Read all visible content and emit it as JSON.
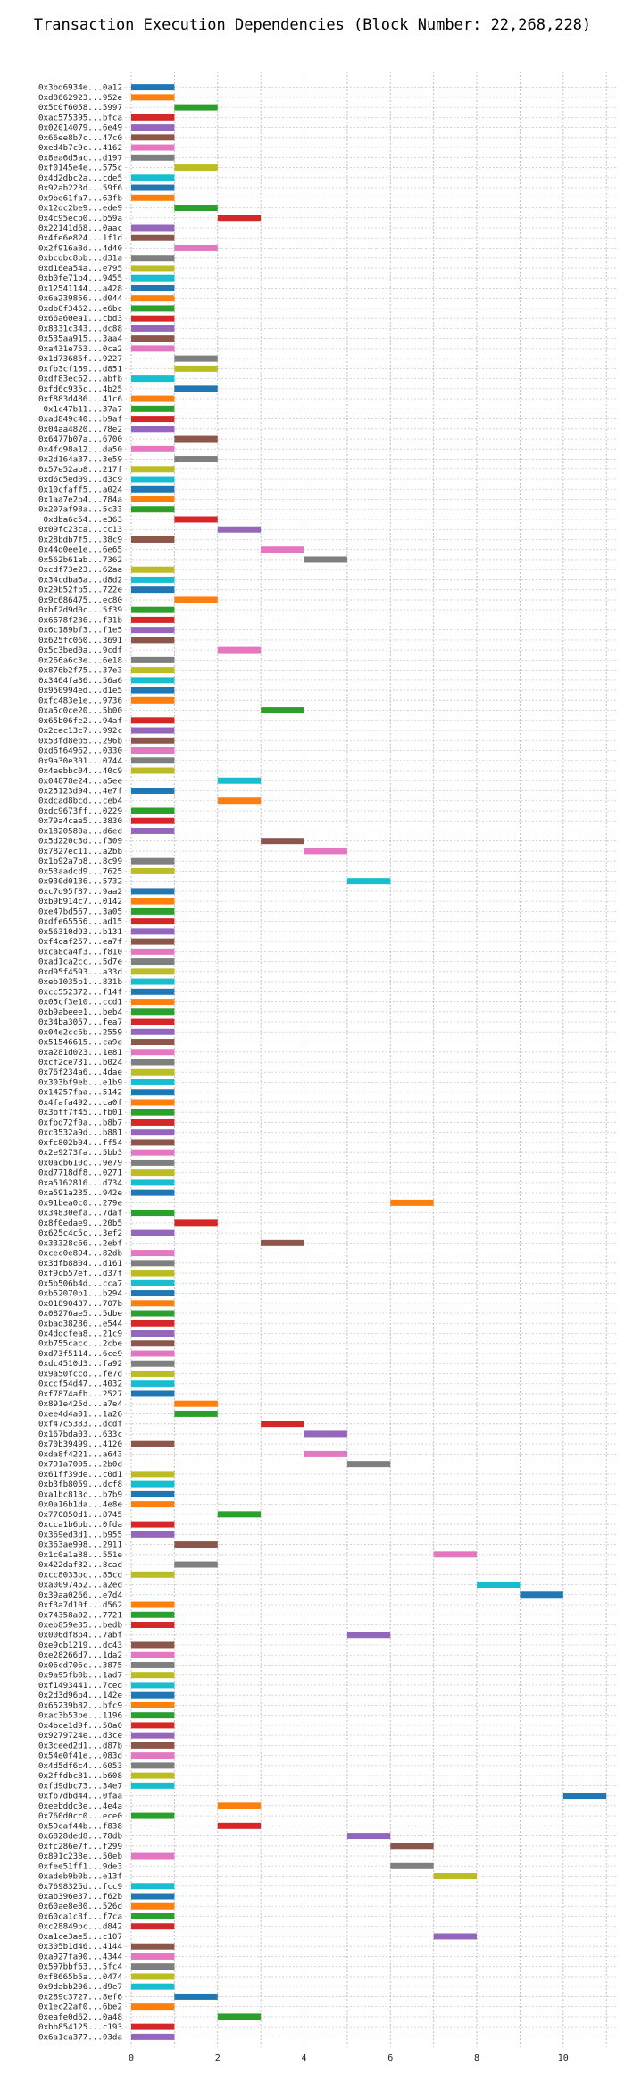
{
  "chart_data": {
    "type": "bar",
    "orientation": "horizontal-gantt",
    "title": "Transaction Execution Dependencies (Block Number: 22,268,228)",
    "xlabel": "",
    "ylabel": "",
    "xlim": [
      0,
      11.6
    ],
    "xticks": [
      0,
      2,
      4,
      6,
      8,
      10
    ],
    "grid": true,
    "colors": [
      "#1f77b4",
      "#ff7f0e",
      "#2ca02c",
      "#d62728",
      "#9467bd",
      "#8c564b",
      "#e377c2",
      "#7f7f7f",
      "#bcbd22",
      "#17becf"
    ],
    "transactions": [
      {
        "label": "0x3bd6934e...0a12",
        "start": 0
      },
      {
        "label": "0xd8662923...952e",
        "start": 0
      },
      {
        "label": "0x5c0f6058...5997",
        "start": 1
      },
      {
        "label": "0xac575395...bfca",
        "start": 0
      },
      {
        "label": "0x02014079...6e49",
        "start": 0
      },
      {
        "label": "0x66ee8b7c...47c0",
        "start": 0
      },
      {
        "label": "0xed4b7c9c...4162",
        "start": 0
      },
      {
        "label": "0x8ea6d5ac...d197",
        "start": 0
      },
      {
        "label": "0xf0145e4e...575c",
        "start": 1
      },
      {
        "label": "0x4d2dbc2a...cde5",
        "start": 0
      },
      {
        "label": "0x92ab223d...59f6",
        "start": 0
      },
      {
        "label": "0x9be61fa7...63fb",
        "start": 0
      },
      {
        "label": "0x12dc2be9...ede9",
        "start": 1
      },
      {
        "label": "0x4c95ecb0...b59a",
        "start": 2
      },
      {
        "label": "0x22141d68...0aac",
        "start": 0
      },
      {
        "label": "0x4fe6e824...1f1d",
        "start": 0
      },
      {
        "label": "0x2f916a8d...4d40",
        "start": 1
      },
      {
        "label": "0xbcdbc8bb...d31a",
        "start": 0
      },
      {
        "label": "0xd16ea54a...e795",
        "start": 0
      },
      {
        "label": "0xb0fe71b4...9455",
        "start": 0
      },
      {
        "label": "0x12541144...a428",
        "start": 0
      },
      {
        "label": "0x6a239856...d044",
        "start": 0
      },
      {
        "label": "0xdb0f3462...e6bc",
        "start": 0
      },
      {
        "label": "0x66a60ea1...cbd3",
        "start": 0
      },
      {
        "label": "0x8331c343...dc88",
        "start": 0
      },
      {
        "label": "0x535aa915...3aa4",
        "start": 0
      },
      {
        "label": "0xa431e753...0ca2",
        "start": 0
      },
      {
        "label": "0x1d73685f...9227",
        "start": 1
      },
      {
        "label": "0xfb3cf169...d851",
        "start": 1
      },
      {
        "label": "0xdf83ec62...abfb",
        "start": 0
      },
      {
        "label": "0xfd6c935c...4b25",
        "start": 1
      },
      {
        "label": "0xf883d486...41c6",
        "start": 0
      },
      {
        "label": "0x1c47b11...37a7",
        "start": 0
      },
      {
        "label": "0xad849c40...b9af",
        "start": 0
      },
      {
        "label": "0x04aa4820...78e2",
        "start": 0
      },
      {
        "label": "0x6477b07a...6700",
        "start": 1
      },
      {
        "label": "0x4fc98a12...da50",
        "start": 0
      },
      {
        "label": "0x2d164a37...3e59",
        "start": 1
      },
      {
        "label": "0x57e52ab8...217f",
        "start": 0
      },
      {
        "label": "0xd6c5ed09...d3c9",
        "start": 0
      },
      {
        "label": "0x10cfaff5...a024",
        "start": 0
      },
      {
        "label": "0x1aa7e2b4...784a",
        "start": 0
      },
      {
        "label": "0x207af98a...5c33",
        "start": 0
      },
      {
        "label": "0xdba6c54...e363",
        "start": 1
      },
      {
        "label": "0x09fc23ca...cc13",
        "start": 2
      },
      {
        "label": "0x28bdb7f5...38c9",
        "start": 0
      },
      {
        "label": "0x44d0ee1e...6e65",
        "start": 3
      },
      {
        "label": "0x562b61ab...7362",
        "start": 4
      },
      {
        "label": "0xcdf73e23...62aa",
        "start": 0
      },
      {
        "label": "0x34cdba6a...d8d2",
        "start": 0
      },
      {
        "label": "0x29b52fb5...722e",
        "start": 0
      },
      {
        "label": "0x9c686475...ec80",
        "start": 1
      },
      {
        "label": "0xbf2d9d0c...5f39",
        "start": 0
      },
      {
        "label": "0x6678f236...f31b",
        "start": 0
      },
      {
        "label": "0x6c189bf3...f1e5",
        "start": 0
      },
      {
        "label": "0x625fc060...3691",
        "start": 0
      },
      {
        "label": "0x5c3bed0a...9cdf",
        "start": 2
      },
      {
        "label": "0x266a6c3e...6e18",
        "start": 0
      },
      {
        "label": "0x876b2f75...37e3",
        "start": 0
      },
      {
        "label": "0x3464fa36...56a6",
        "start": 0
      },
      {
        "label": "0x950994ed...d1e5",
        "start": 0
      },
      {
        "label": "0xfc483e1e...9736",
        "start": 0
      },
      {
        "label": "0xa5c0ce20...5b00",
        "start": 3
      },
      {
        "label": "0x65b06fe2...94af",
        "start": 0
      },
      {
        "label": "0x2cec13c7...992c",
        "start": 0
      },
      {
        "label": "0x53fd8eb5...296b",
        "start": 0
      },
      {
        "label": "0xd6f64962...0330",
        "start": 0
      },
      {
        "label": "0x9a30e301...0744",
        "start": 0
      },
      {
        "label": "0x4eebbc04...40c9",
        "start": 0
      },
      {
        "label": "0x04878e24...a5ee",
        "start": 2
      },
      {
        "label": "0x25123d94...4e7f",
        "start": 0
      },
      {
        "label": "0xdcad8bcd...ceb4",
        "start": 2
      },
      {
        "label": "0xdc9673ff...0229",
        "start": 0
      },
      {
        "label": "0x79a4cae5...3830",
        "start": 0
      },
      {
        "label": "0x1820580a...d6ed",
        "start": 0
      },
      {
        "label": "0x5d220c3d...f309",
        "start": 3
      },
      {
        "label": "0x7827ec11...a2bb",
        "start": 4
      },
      {
        "label": "0x1b92a7b8...8c99",
        "start": 0
      },
      {
        "label": "0x53aadcd9...7625",
        "start": 0
      },
      {
        "label": "0x930d0136...5732",
        "start": 5
      },
      {
        "label": "0xc7d95f87...9aa2",
        "start": 0
      },
      {
        "label": "0xb9b914c7...0142",
        "start": 0
      },
      {
        "label": "0xe47bd567...3a05",
        "start": 0
      },
      {
        "label": "0xdfe65556...ad15",
        "start": 0
      },
      {
        "label": "0x56310d93...b131",
        "start": 0
      },
      {
        "label": "0xf4caf257...ea7f",
        "start": 0
      },
      {
        "label": "0xca8ca4f3...f810",
        "start": 0
      },
      {
        "label": "0xad1ca2cc...5d7e",
        "start": 0
      },
      {
        "label": "0xd95f4593...a33d",
        "start": 0
      },
      {
        "label": "0xeb1035b1...831b",
        "start": 0
      },
      {
        "label": "0xcc552372...f14f",
        "start": 0
      },
      {
        "label": "0x05cf3e10...ccd1",
        "start": 0
      },
      {
        "label": "0xb9abeee1...beb4",
        "start": 0
      },
      {
        "label": "0x34ba3057...fea7",
        "start": 0
      },
      {
        "label": "0x04e2cc6b...2559",
        "start": 0
      },
      {
        "label": "0x51546615...ca9e",
        "start": 0
      },
      {
        "label": "0xa281d023...1e81",
        "start": 0
      },
      {
        "label": "0xcf2ce731...b024",
        "start": 0
      },
      {
        "label": "0x76f234a6...4dae",
        "start": 0
      },
      {
        "label": "0x303bf9eb...e1b9",
        "start": 0
      },
      {
        "label": "0x14257faa...5142",
        "start": 0
      },
      {
        "label": "0x4fafa492...ca0f",
        "start": 0
      },
      {
        "label": "0x3bff7f45...fb01",
        "start": 0
      },
      {
        "label": "0xfbd72f0a...b8b7",
        "start": 0
      },
      {
        "label": "0xc3532a9d...b881",
        "start": 0
      },
      {
        "label": "0xfc802b04...ff54",
        "start": 0
      },
      {
        "label": "0x2e9273fa...5bb3",
        "start": 0
      },
      {
        "label": "0x0acb610c...9e79",
        "start": 0
      },
      {
        "label": "0xd7718df8...0271",
        "start": 0
      },
      {
        "label": "0xa5162816...d734",
        "start": 0
      },
      {
        "label": "0xa591a235...942e",
        "start": 0
      },
      {
        "label": "0x91bea0c0...279e",
        "start": 6
      },
      {
        "label": "0x34830efa...7daf",
        "start": 0
      },
      {
        "label": "0x8f0edae9...20b5",
        "start": 1
      },
      {
        "label": "0x625c4c5c...3ef2",
        "start": 0
      },
      {
        "label": "0x33328c66...2ebf",
        "start": 3
      },
      {
        "label": "0xcec0e894...82db",
        "start": 0
      },
      {
        "label": "0x3dfb8804...d161",
        "start": 0
      },
      {
        "label": "0xf9cb57ef...d37f",
        "start": 0
      },
      {
        "label": "0x5b506b4d...cca7",
        "start": 0
      },
      {
        "label": "0xb52070b1...b294",
        "start": 0
      },
      {
        "label": "0x01890437...707b",
        "start": 0
      },
      {
        "label": "0x08276ae5...5dbe",
        "start": 0
      },
      {
        "label": "0xbad38286...e544",
        "start": 0
      },
      {
        "label": "0x4ddcfea8...21c9",
        "start": 0
      },
      {
        "label": "0xb755cacc...2cbe",
        "start": 0
      },
      {
        "label": "0xd73f5114...6ce9",
        "start": 0
      },
      {
        "label": "0xdc4510d3...fa92",
        "start": 0
      },
      {
        "label": "0x9a50fccd...fe7d",
        "start": 0
      },
      {
        "label": "0xccf54d47...4032",
        "start": 0
      },
      {
        "label": "0xf7874afb...2527",
        "start": 0
      },
      {
        "label": "0x891e425d...a7e4",
        "start": 1
      },
      {
        "label": "0xee4d4a01...1a26",
        "start": 1
      },
      {
        "label": "0xf47c5383...dcdf",
        "start": 3
      },
      {
        "label": "0x167bda03...633c",
        "start": 4
      },
      {
        "label": "0x70b39499...4120",
        "start": 0
      },
      {
        "label": "0xda8f4221...a643",
        "start": 4
      },
      {
        "label": "0x791a7005...2b0d",
        "start": 5
      },
      {
        "label": "0x61ff39de...c0d1",
        "start": 0
      },
      {
        "label": "0xb3fb8059...dcf8",
        "start": 0
      },
      {
        "label": "0xa1bc813c...b7b9",
        "start": 0
      },
      {
        "label": "0x0a16b1da...4e8e",
        "start": 0
      },
      {
        "label": "0x770850d1...8745",
        "start": 2
      },
      {
        "label": "0xcca1b6bb...0fda",
        "start": 0
      },
      {
        "label": "0x369ed3d1...b955",
        "start": 0
      },
      {
        "label": "0x363ae998...2911",
        "start": 1
      },
      {
        "label": "0x1c0a1a88...551e",
        "start": 7
      },
      {
        "label": "0x422daf32...8cad",
        "start": 1
      },
      {
        "label": "0xcc8033bc...85cd",
        "start": 0
      },
      {
        "label": "0xa0097452...a2ed",
        "start": 8
      },
      {
        "label": "0x39aa0266...e7d4",
        "start": 9
      },
      {
        "label": "0xf3a7d10f...d562",
        "start": 0
      },
      {
        "label": "0x74358a02...7721",
        "start": 0
      },
      {
        "label": "0xeb859e35...bedb",
        "start": 0
      },
      {
        "label": "0x006df8b4...7abf",
        "start": 5
      },
      {
        "label": "0xe9cb1219...dc43",
        "start": 0
      },
      {
        "label": "0xe28266d7...1da2",
        "start": 0
      },
      {
        "label": "0x06cd706c...3875",
        "start": 0
      },
      {
        "label": "0x9a95fb0b...1ad7",
        "start": 0
      },
      {
        "label": "0xf1493441...7ced",
        "start": 0
      },
      {
        "label": "0x2d3d96b4...142e",
        "start": 0
      },
      {
        "label": "0x65239b82...bfc9",
        "start": 0
      },
      {
        "label": "0xac3b53be...1196",
        "start": 0
      },
      {
        "label": "0x4bce1d9f...50a0",
        "start": 0
      },
      {
        "label": "0x9279724e...d3ce",
        "start": 0
      },
      {
        "label": "0x3ceed2d1...d87b",
        "start": 0
      },
      {
        "label": "0x54e0f41e...083d",
        "start": 0
      },
      {
        "label": "0x4d5df6c4...6053",
        "start": 0
      },
      {
        "label": "0x2ffdbc81...b608",
        "start": 0
      },
      {
        "label": "0xfd9dbc73...34e7",
        "start": 0
      },
      {
        "label": "0xfb7dbd44...0faa",
        "start": 10
      },
      {
        "label": "0xeebddc3e...4e4a",
        "start": 2
      },
      {
        "label": "0x760d0cc0...ece0",
        "start": 0
      },
      {
        "label": "0x59caf44b...f838",
        "start": 2
      },
      {
        "label": "0x6828ded8...78db",
        "start": 5
      },
      {
        "label": "0xfc286e7f...f299",
        "start": 6
      },
      {
        "label": "0x891c238e...50eb",
        "start": 0
      },
      {
        "label": "0xfee51ff1...9de3",
        "start": 6
      },
      {
        "label": "0xadeb9b0b...e13f",
        "start": 7
      },
      {
        "label": "0x7698325d...fcc9",
        "start": 0
      },
      {
        "label": "0xab396e37...f62b",
        "start": 0
      },
      {
        "label": "0x60ae8e80...526d",
        "start": 0
      },
      {
        "label": "0x60ca1c8f...f7ca",
        "start": 0
      },
      {
        "label": "0xc28849bc...d842",
        "start": 0
      },
      {
        "label": "0xa1ce3ae5...c107",
        "start": 7
      },
      {
        "label": "0x305b1d46...4144",
        "start": 0
      },
      {
        "label": "0xa927fa90...4344",
        "start": 0
      },
      {
        "label": "0x597bbf63...5fc4",
        "start": 0
      },
      {
        "label": "0xf8665b5a...0474",
        "start": 0
      },
      {
        "label": "0x9dabb206...d9e7",
        "start": 0
      },
      {
        "label": "0x289c3727...8ef6",
        "start": 1
      },
      {
        "label": "0x1ec22af0...6be2",
        "start": 0
      },
      {
        "label": "0xeafe0d62...0a48",
        "start": 2
      },
      {
        "label": "0xbb854125...c193",
        "start": 0
      },
      {
        "label": "0x6a1ca377...03da",
        "start": 0
      }
    ]
  }
}
